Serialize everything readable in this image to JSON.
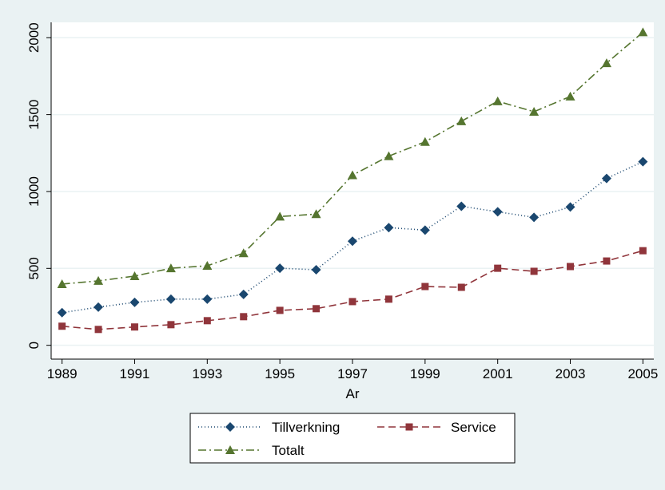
{
  "chart_data": {
    "type": "line",
    "x_label": "Ar",
    "x": [
      1989,
      1990,
      1991,
      1992,
      1993,
      1994,
      1995,
      1996,
      1997,
      1998,
      1999,
      2000,
      2001,
      2002,
      2003,
      2004,
      2005
    ],
    "series": [
      {
        "name": "Tillverkning",
        "color": "#1a476f",
        "marker": "diamond",
        "dash": "1,3",
        "values": [
          212,
          248,
          279,
          300,
          300,
          331,
          501,
          491,
          677,
          765,
          749,
          904,
          868,
          832,
          899,
          1085,
          1194
        ]
      },
      {
        "name": "Service",
        "color": "#90353b",
        "marker": "square",
        "dash": "9,5",
        "values": [
          124,
          103,
          119,
          134,
          160,
          186,
          227,
          238,
          284,
          300,
          382,
          377,
          501,
          481,
          512,
          548,
          615
        ]
      },
      {
        "name": "Totalt",
        "color": "#55752f",
        "marker": "triangle",
        "dash": "10,4,2,4",
        "values": [
          398,
          419,
          450,
          501,
          517,
          599,
          837,
          853,
          1106,
          1230,
          1323,
          1457,
          1587,
          1519,
          1618,
          1835,
          2036
        ]
      }
    ],
    "xlim": [
      1988.7,
      2005.3
    ],
    "ylim": [
      -90,
      2100
    ],
    "xticks": [
      1989,
      1991,
      1993,
      1995,
      1997,
      1999,
      2001,
      2003,
      2005
    ],
    "yticks": [
      0,
      500,
      1000,
      1500,
      2000
    ],
    "grid": true
  }
}
